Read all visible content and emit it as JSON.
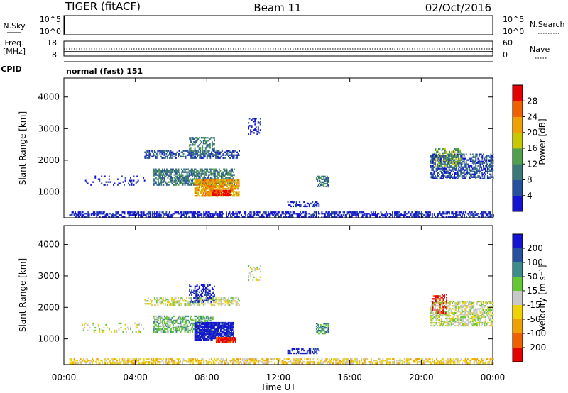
{
  "header": {
    "station": "TIGER (fitACF)",
    "beam": "Beam 11",
    "date": "02/Oct/2016"
  },
  "top_panels": {
    "nsky_label": "N.Sky",
    "nsky_ticks": [
      "10^5",
      "10^0"
    ],
    "nsearch_label": "N.Search",
    "freq_label_1": "Freq.",
    "freq_label_2": "[MHz]",
    "freq_ticks": [
      "18",
      "8"
    ],
    "nave_label": "Nave",
    "nave_ticks": [
      "60",
      "0"
    ],
    "cpid_label": "CPID",
    "cpid_value": "normal (fast) 151"
  },
  "chart_data": [
    {
      "type": "heatmap",
      "name": "power",
      "ylabel": "Slant Range [km]",
      "xlabel": "",
      "colorbar_label": "Power [dB]",
      "xlim_hours": [
        0,
        24
      ],
      "ylim_km": [
        180,
        4600
      ],
      "x_ticks": [
        "00:00",
        "04:00",
        "08:00",
        "12:00",
        "16:00",
        "20:00",
        "00:00"
      ],
      "y_ticks": [
        1000,
        2000,
        3000,
        4000
      ],
      "colorbar": {
        "ticks": [
          "4",
          "8",
          "12",
          "16",
          "20",
          "24",
          "28"
        ],
        "colors": [
          "#1414d2",
          "#2850a0",
          "#3c7878",
          "#50a050",
          "#c8c800",
          "#f0a000",
          "#f06000",
          "#e60000"
        ]
      },
      "regions": [
        {
          "t0": 0.3,
          "t1": 24.0,
          "r0": 200,
          "r1": 350,
          "level": 0,
          "density": 0.55
        },
        {
          "t0": 4.5,
          "t1": 9.8,
          "r0": 2050,
          "r1": 2300,
          "level": 1,
          "density": 0.5
        },
        {
          "t0": 7.0,
          "t1": 8.4,
          "r0": 2150,
          "r1": 2700,
          "level": 2,
          "density": 0.45
        },
        {
          "t0": 5.0,
          "t1": 9.5,
          "r0": 1200,
          "r1": 1700,
          "level": 2,
          "density": 0.6
        },
        {
          "t0": 7.3,
          "t1": 9.8,
          "r0": 850,
          "r1": 1350,
          "level": 5,
          "density": 0.75
        },
        {
          "t0": 8.3,
          "t1": 9.3,
          "r0": 880,
          "r1": 1050,
          "level": 7,
          "density": 0.85
        },
        {
          "t0": 14.1,
          "t1": 14.8,
          "r0": 1150,
          "r1": 1500,
          "level": 2,
          "density": 0.5
        },
        {
          "t0": 12.5,
          "t1": 14.3,
          "r0": 520,
          "r1": 700,
          "level": 0,
          "density": 0.45
        },
        {
          "t0": 20.5,
          "t1": 24.0,
          "r0": 1400,
          "r1": 2200,
          "level": 1,
          "density": 0.55
        },
        {
          "t0": 20.7,
          "t1": 22.2,
          "r0": 1800,
          "r1": 2350,
          "level": 3,
          "density": 0.4
        },
        {
          "t0": 1.0,
          "t1": 4.5,
          "r0": 1200,
          "r1": 1500,
          "level": 0,
          "density": 0.12
        },
        {
          "t0": 10.3,
          "t1": 11.0,
          "r0": 2800,
          "r1": 3300,
          "level": 0,
          "density": 0.2
        }
      ]
    },
    {
      "type": "heatmap",
      "name": "velocity",
      "ylabel": "Slant Range [km]",
      "xlabel": "Time UT",
      "colorbar_label": "Velocity [m s⁻¹]",
      "xlim_hours": [
        0,
        24
      ],
      "ylim_km": [
        180,
        4600
      ],
      "x_ticks": [
        "00:00",
        "04:00",
        "08:00",
        "12:00",
        "16:00",
        "20:00",
        "00:00"
      ],
      "y_ticks": [
        1000,
        2000,
        3000,
        4000
      ],
      "colorbar": {
        "ticks": [
          "200",
          "100",
          "50",
          "15",
          "-15",
          "-50",
          "-100",
          "-200"
        ],
        "colors": [
          "#1414d2",
          "#2850a0",
          "#3c8c8c",
          "#64c832",
          "#c8c8c8",
          "#f0d200",
          "#f0a000",
          "#f06000",
          "#e60000"
        ]
      },
      "regions": [
        {
          "t0": 0.3,
          "t1": 24.0,
          "r0": 200,
          "r1": 350,
          "level": 5,
          "density": 0.5
        },
        {
          "t0": 4.5,
          "t1": 9.8,
          "r0": 2050,
          "r1": 2300,
          "level": 4,
          "density": 0.5
        },
        {
          "t0": 7.0,
          "t1": 8.4,
          "r0": 2150,
          "r1": 2700,
          "level": 0,
          "density": 0.35
        },
        {
          "t0": 5.0,
          "t1": 8.3,
          "r0": 1200,
          "r1": 1700,
          "level": 3,
          "density": 0.6
        },
        {
          "t0": 7.3,
          "t1": 9.5,
          "r0": 950,
          "r1": 1500,
          "level": 0,
          "density": 0.85
        },
        {
          "t0": 8.5,
          "t1": 9.6,
          "r0": 880,
          "r1": 1050,
          "level": 8,
          "density": 0.85
        },
        {
          "t0": 14.1,
          "t1": 14.8,
          "r0": 1150,
          "r1": 1500,
          "level": 2,
          "density": 0.5
        },
        {
          "t0": 12.5,
          "t1": 14.3,
          "r0": 520,
          "r1": 700,
          "level": 0,
          "density": 0.45
        },
        {
          "t0": 20.5,
          "t1": 24.0,
          "r0": 1400,
          "r1": 2200,
          "level": 4,
          "density": 0.55
        },
        {
          "t0": 20.6,
          "t1": 21.4,
          "r0": 1800,
          "r1": 2400,
          "level": 8,
          "density": 0.35
        },
        {
          "t0": 1.0,
          "t1": 4.5,
          "r0": 1200,
          "r1": 1500,
          "level": 4,
          "density": 0.12
        },
        {
          "t0": 10.3,
          "t1": 11.0,
          "r0": 2800,
          "r1": 3300,
          "level": 4,
          "density": 0.2
        }
      ]
    }
  ]
}
